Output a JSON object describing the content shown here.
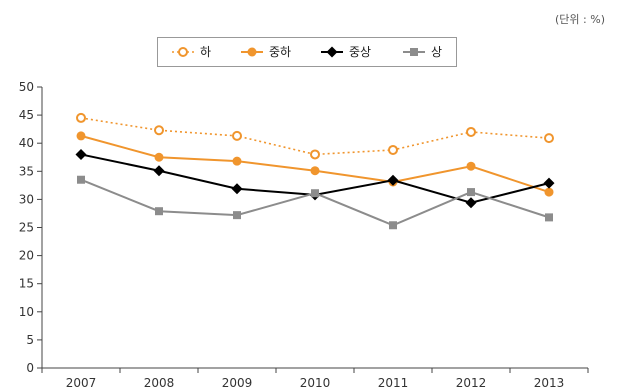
{
  "unit_label": "(단위 : %)",
  "chart_data": {
    "type": "line",
    "categories": [
      "2007",
      "2008",
      "2009",
      "2010",
      "2011",
      "2012",
      "2013"
    ],
    "ylim": [
      0,
      50
    ],
    "yticks": [
      0,
      5,
      10,
      15,
      20,
      25,
      30,
      35,
      40,
      45,
      50
    ],
    "grid": false,
    "legend_position": "top-center",
    "series": [
      {
        "name": "하",
        "color": "#F0952D",
        "style": "dotted",
        "marker": "open-circle",
        "values": [
          44.5,
          42.3,
          41.3,
          38.0,
          38.8,
          42.0,
          40.9
        ]
      },
      {
        "name": "중하",
        "color": "#F0952D",
        "style": "solid",
        "marker": "filled-circle",
        "values": [
          41.3,
          37.5,
          36.8,
          35.1,
          33.1,
          35.9,
          31.3
        ]
      },
      {
        "name": "중상",
        "color": "#000000",
        "style": "solid",
        "marker": "diamond",
        "values": [
          38.0,
          35.1,
          31.9,
          30.8,
          33.4,
          29.4,
          32.9
        ]
      },
      {
        "name": "상",
        "color": "#8C8C8C",
        "style": "solid",
        "marker": "square",
        "values": [
          33.5,
          27.9,
          27.2,
          31.1,
          25.4,
          31.3,
          26.8
        ]
      }
    ]
  }
}
